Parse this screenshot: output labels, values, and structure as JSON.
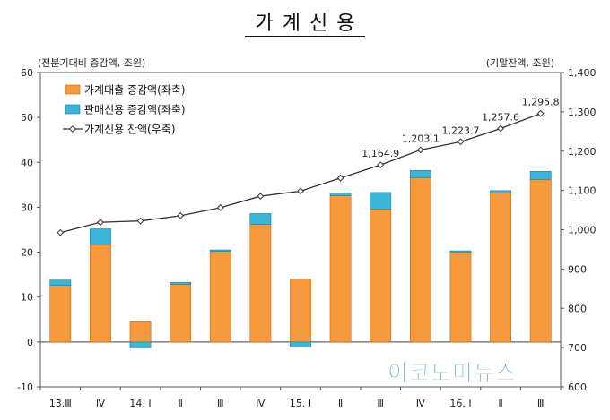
{
  "title": "가계신용",
  "left_unit": "(전분기대비 증감액, 조원)",
  "right_unit": "(기말잔액, 조원)",
  "watermark": "이코노미뉴스",
  "chart_data": {
    "type": "bar",
    "categories": [
      "13.Ⅲ",
      "Ⅳ",
      "14. Ⅰ",
      "Ⅱ",
      "Ⅲ",
      "Ⅳ",
      "15. Ⅰ",
      "Ⅱ",
      "Ⅲ",
      "Ⅳ",
      "16. Ⅰ",
      "Ⅱ",
      "Ⅲ"
    ],
    "stacked": true,
    "series": [
      {
        "name": "가계대출 증감액(좌축)",
        "axis": "left",
        "color": "#f79a3e",
        "values": [
          12.6,
          21.7,
          4.5,
          12.8,
          20.3,
          26.2,
          14.0,
          32.6,
          29.6,
          36.6,
          20.2,
          33.2,
          36.2
        ]
      },
      {
        "name": "판매신용 증감액(좌축)",
        "axis": "left",
        "color": "#3bb4d8",
        "values": [
          1.2,
          3.5,
          -1.3,
          0.5,
          0.2,
          2.4,
          -1.1,
          0.6,
          3.7,
          1.6,
          0.1,
          0.5,
          1.8
        ]
      },
      {
        "name": "가계신용 잔액(우축)",
        "axis": "right",
        "type": "line",
        "color": "#333333",
        "values": [
          992.7,
          1019.0,
          1022.4,
          1035.7,
          1056.2,
          1085.3,
          1098.3,
          1131.5,
          1164.9,
          1203.1,
          1223.7,
          1257.6,
          1295.8
        ]
      }
    ],
    "point_labels": [
      {
        "index": 8,
        "text": "1,164.9"
      },
      {
        "index": 9,
        "text": "1,203.1"
      },
      {
        "index": 10,
        "text": "1,223.7"
      },
      {
        "index": 11,
        "text": "1,257.6"
      },
      {
        "index": 12,
        "text": "1,295.8"
      }
    ],
    "ylim_left": [
      -10,
      60
    ],
    "yticks_left": [
      "-10",
      "0",
      "10",
      "20",
      "30",
      "40",
      "50",
      "60"
    ],
    "ylim_right": [
      600,
      1400
    ],
    "yticks_right": [
      "600",
      "700",
      "800",
      "900",
      "1,000",
      "1,100",
      "1,200",
      "1,300",
      "1,400"
    ],
    "legend_position": "top-left",
    "grid": false
  }
}
